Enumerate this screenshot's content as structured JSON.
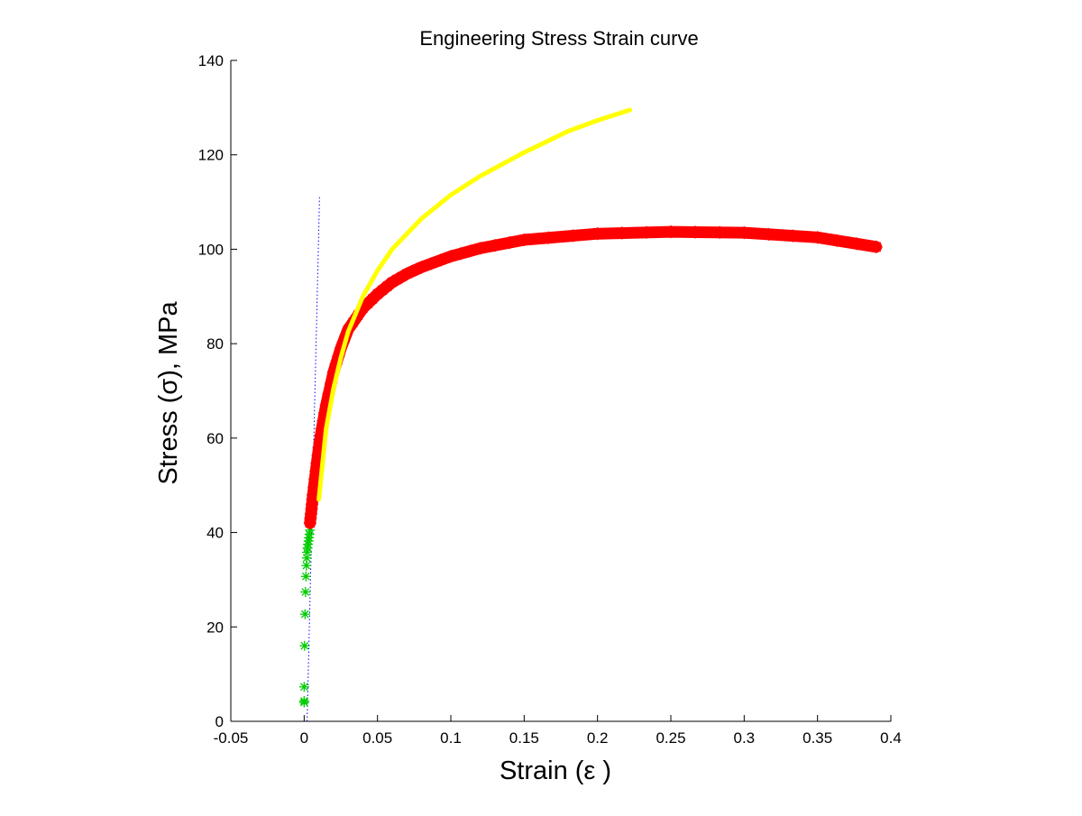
{
  "chart_data": {
    "type": "scatter",
    "title": "Engineering Stress Strain curve",
    "xlabel": "Strain (ε )",
    "ylabel": "Stress (σ), MPa",
    "xlim": [
      -0.05,
      0.4
    ],
    "ylim": [
      0,
      140
    ],
    "xticks": [
      -0.05,
      0,
      0.05,
      0.1,
      0.15,
      0.2,
      0.25,
      0.3,
      0.35,
      0.4
    ],
    "xtick_labels": [
      "-0.05",
      "0",
      "0.05",
      "0.1",
      "0.15",
      "0.2",
      "0.25",
      "0.3",
      "0.35",
      "0.4"
    ],
    "yticks": [
      0,
      20,
      40,
      60,
      80,
      100,
      120,
      140
    ],
    "ytick_labels": [
      "0",
      "20",
      "40",
      "60",
      "80",
      "100",
      "120",
      "140"
    ],
    "grid": false,
    "legend": "none",
    "series": [
      {
        "style": "dotted-line",
        "color": "#0000ff",
        "x": [
          0.002,
          0.0105
        ],
        "y": [
          0,
          111
        ]
      },
      {
        "style": "star-markers",
        "color": "#00cc00",
        "x": [
          0.0,
          0.0,
          0.0,
          0.0003,
          0.0006,
          0.0009,
          0.0012,
          0.0015,
          0.0018,
          0.002,
          0.0023,
          0.0026,
          0.003,
          0.0033,
          0.0036,
          0.004
        ],
        "y": [
          4.0,
          4.3,
          7.3,
          16.0,
          22.7,
          27.4,
          30.7,
          33.0,
          34.6,
          35.8,
          36.7,
          37.5,
          38.2,
          38.9,
          39.6,
          40.5
        ]
      },
      {
        "style": "thick-star-curve",
        "color": "#ff0000",
        "x": [
          0.004,
          0.005,
          0.006,
          0.008,
          0.01,
          0.012,
          0.015,
          0.02,
          0.025,
          0.03,
          0.04,
          0.05,
          0.06,
          0.07,
          0.08,
          0.1,
          0.12,
          0.15,
          0.2,
          0.25,
          0.3,
          0.35,
          0.39
        ],
        "y": [
          42,
          45,
          48,
          53,
          58,
          62,
          67,
          74,
          79,
          83,
          87.5,
          90.5,
          93,
          94.8,
          96.2,
          98.5,
          100.2,
          102,
          103.3,
          103.7,
          103.5,
          102.5,
          100.5
        ]
      },
      {
        "style": "thick-line",
        "color": "#ffff00",
        "x": [
          0.01,
          0.015,
          0.02,
          0.025,
          0.03,
          0.04,
          0.05,
          0.06,
          0.08,
          0.1,
          0.12,
          0.15,
          0.18,
          0.2,
          0.222
        ],
        "y": [
          47,
          62,
          70.5,
          77,
          82.5,
          90,
          95.5,
          100,
          106.5,
          111.5,
          115.5,
          120.5,
          125,
          127.3,
          129.5
        ]
      }
    ]
  }
}
